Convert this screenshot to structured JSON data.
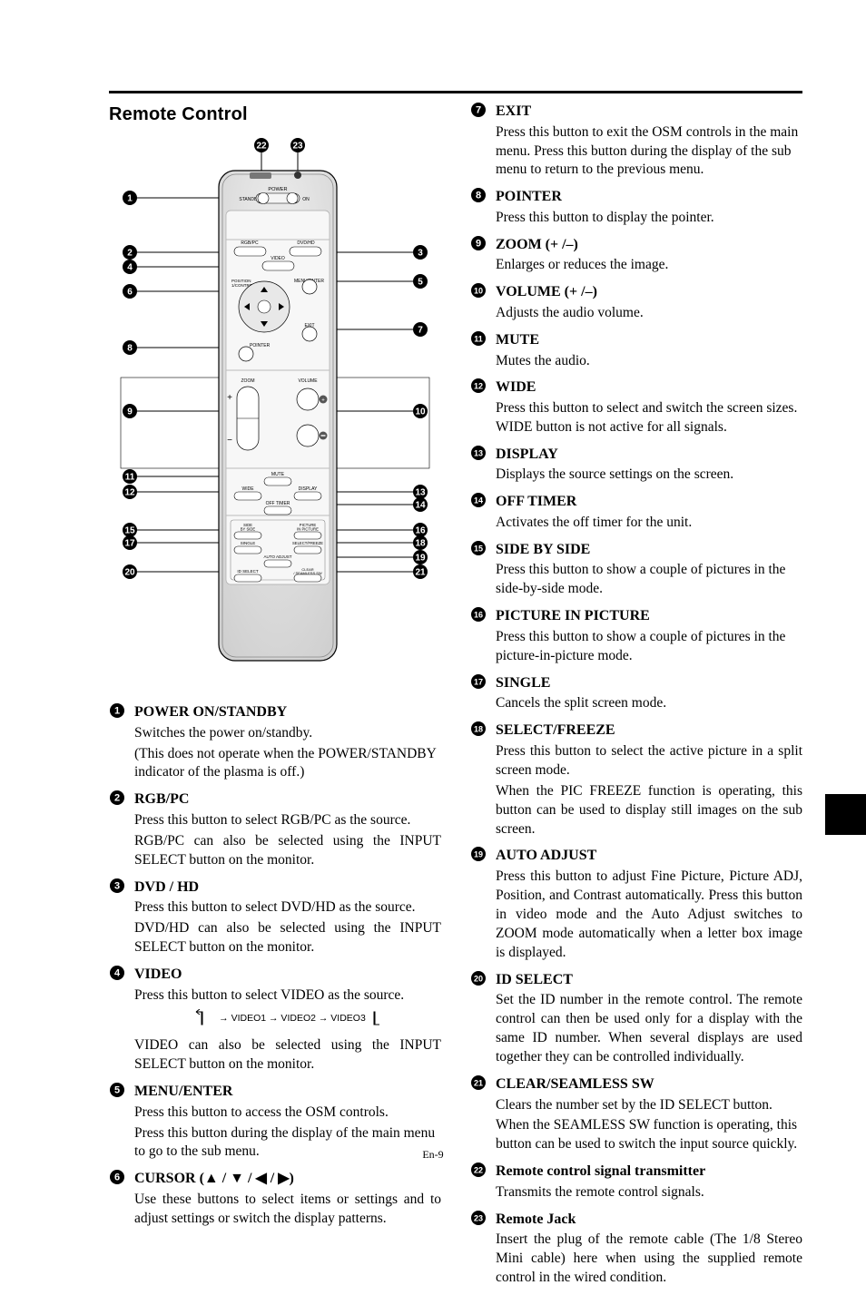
{
  "page": {
    "footer": "En-9",
    "section_title": "Remote Control"
  },
  "remote_figure": {
    "background": "#e6e6e6",
    "stroke": "#000000",
    "labels": {
      "power": "POWER",
      "standby": "STANDBY",
      "on": "ON",
      "rgbpc": "RGB/PC",
      "dvdhd": "DVD/HD",
      "video": "VIDEO",
      "position": "POSITION\n1/CONTROL",
      "menu": "MENU/ENTER",
      "exit": "EXIT",
      "pointer": "POINTER",
      "zoom": "ZOOM",
      "volume": "VOLUME",
      "plus": "+",
      "minus": "−",
      "mute": "MUTE",
      "wide": "WIDE",
      "display": "DISPLAY",
      "offtimer": "OFF TIMER",
      "sidebyside": "SIDE\nBY SIDE",
      "pip": "PICTURE\nIN PICTURE",
      "single": "SINGLE",
      "selectfreeze": "SELECT/FREEZE",
      "autoadjust": "AUTO ADJUST",
      "idselect": "ID SELECT",
      "clearseamless": "CLEAR\n/ SEAMLESS SW"
    }
  },
  "callouts": {
    "c1": "1",
    "c2": "2",
    "c3": "3",
    "c4": "4",
    "c5": "5",
    "c6": "6",
    "c7": "7",
    "c8": "8",
    "c9": "9",
    "c10": "10",
    "c11": "11",
    "c12": "12",
    "c13": "13",
    "c14": "14",
    "c15": "15",
    "c16": "16",
    "c17": "17",
    "c18": "18",
    "c19": "19",
    "c20": "20",
    "c21": "21",
    "c22": "22",
    "c23": "23"
  },
  "items": [
    {
      "n": 1,
      "title": "POWER ON/STANDBY",
      "body": [
        "Switches the power on/standby.",
        "(This does not operate when the POWER/STANDBY indicator of the plasma is off.)"
      ],
      "justify": false
    },
    {
      "n": 2,
      "title": "RGB/PC",
      "body": [
        "Press this button to select RGB/PC as the source.",
        "RGB/PC can also be selected using the INPUT SELECT button on the monitor."
      ],
      "justify": true
    },
    {
      "n": 3,
      "title": "DVD / HD",
      "body": [
        "Press this button to select DVD/HD as the source.",
        "DVD/HD can also be selected using the INPUT SELECT button on the monitor."
      ],
      "justify": true
    },
    {
      "n": 4,
      "title": "VIDEO",
      "body": [
        "Press this button to select VIDEO as the source."
      ],
      "justify": false,
      "video_chain": "→ VIDEO1 → VIDEO2 → VIDEO3",
      "body_after": [
        "VIDEO can also be selected using the INPUT SELECT button on the monitor."
      ],
      "justify_after": true
    },
    {
      "n": 5,
      "title": "MENU/ENTER",
      "body": [
        "Press this button to access the OSM controls.",
        "Press this button during the display of the main menu to go to the sub menu."
      ],
      "justify": false
    },
    {
      "n": 6,
      "title": "CURSOR (▲ / ▼ / ◀ / ▶)",
      "body": [
        "Use these buttons to select items or settings and to adjust settings or switch the display patterns."
      ],
      "justify": true
    },
    {
      "n": 7,
      "title": "EXIT",
      "body": [
        "Press this button to exit the OSM controls in the main menu. Press this button during the display of the sub menu to return to the previous menu."
      ],
      "justify": false
    },
    {
      "n": 8,
      "title": "POINTER",
      "body": [
        "Press this button to display the pointer."
      ],
      "justify": false
    },
    {
      "n": 9,
      "title": "ZOOM (+ /–)",
      "body": [
        "Enlarges or reduces the image."
      ],
      "justify": false
    },
    {
      "n": 10,
      "title": "VOLUME (+ /–)",
      "body": [
        "Adjusts the audio volume."
      ],
      "justify": false
    },
    {
      "n": 11,
      "title": "MUTE",
      "body": [
        "Mutes the audio."
      ],
      "justify": false
    },
    {
      "n": 12,
      "title": "WIDE",
      "body": [
        "Press this button to select and switch the screen sizes. WIDE button is not active for all signals."
      ],
      "justify": false
    },
    {
      "n": 13,
      "title": "DISPLAY",
      "body": [
        "Displays the source settings on the screen."
      ],
      "justify": false
    },
    {
      "n": 14,
      "title": "OFF TIMER",
      "body": [
        "Activates the off timer for the unit."
      ],
      "justify": false
    },
    {
      "n": 15,
      "title": "SIDE BY SIDE",
      "body": [
        "Press this button to show a couple of pictures in the side-by-side mode."
      ],
      "justify": false
    },
    {
      "n": 16,
      "title": "PICTURE IN PICTURE",
      "body": [
        "Press this button to show a couple of pictures in the picture-in-picture mode."
      ],
      "justify": false
    },
    {
      "n": 17,
      "title": "SINGLE",
      "body": [
        "Cancels the split screen mode."
      ],
      "justify": false
    },
    {
      "n": 18,
      "title": "SELECT/FREEZE",
      "body": [
        "Press this button to select the active picture in a split screen mode.",
        "When the PIC FREEZE function is operating, this button can be used to display still images on the sub screen."
      ],
      "justify": true
    },
    {
      "n": 19,
      "title": "AUTO ADJUST",
      "body": [
        "Press this button to adjust Fine Picture, Picture ADJ, Position, and Contrast automatically. Press this button in video mode and the Auto Adjust switches to ZOOM mode automatically when a letter box image is displayed."
      ],
      "justify": true
    },
    {
      "n": 20,
      "title": "ID SELECT",
      "body": [
        "Set the ID number in the remote control. The remote control can then be used only for a display with the same ID number. When several displays are used together they can be controlled individually."
      ],
      "justify": true
    },
    {
      "n": 21,
      "title": "CLEAR/SEAMLESS SW",
      "body": [
        "Clears the number set by the ID SELECT button.",
        "When the SEAMLESS SW function is operating, this button can be used to switch the input source quickly."
      ],
      "justify": false
    },
    {
      "n": 22,
      "title": "Remote control signal transmitter",
      "body": [
        "Transmits the remote control signals."
      ],
      "justify": false
    },
    {
      "n": 23,
      "title": "Remote Jack",
      "body": [
        "Insert the plug of the remote cable (The 1/8 Stereo Mini cable) here when using the supplied remote control in the wired condition."
      ],
      "justify": true
    }
  ]
}
